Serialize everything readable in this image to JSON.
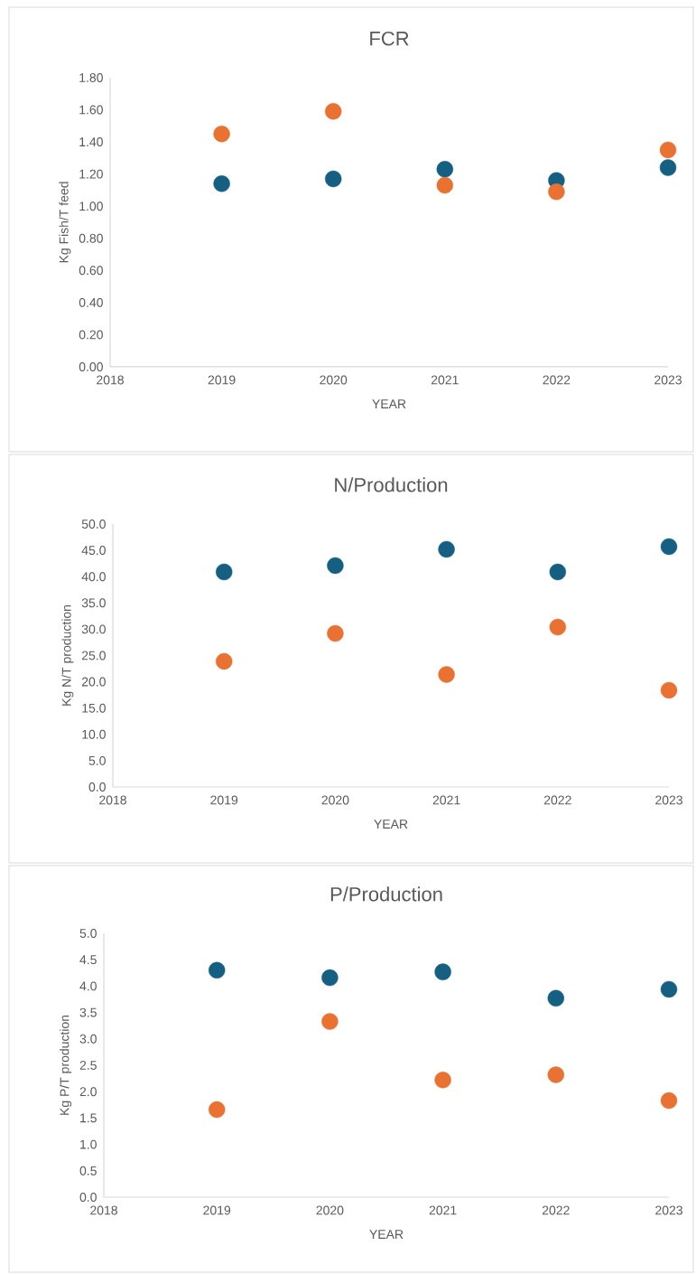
{
  "chart_data": [
    {
      "type": "scatter",
      "title": "FCR",
      "xlabel": "YEAR",
      "ylabel": "Kg Fish/T feed",
      "marker": "circle",
      "x": [
        2019,
        2020,
        2021,
        2022,
        2023
      ],
      "series": [
        {
          "color": "#156082",
          "values": [
            1.14,
            1.17,
            1.23,
            1.16,
            1.24
          ]
        },
        {
          "color": "#e97132",
          "values": [
            1.45,
            1.59,
            1.13,
            1.09,
            1.35
          ]
        }
      ],
      "xlim": [
        2018,
        2023
      ],
      "xticks": [
        2018,
        2019,
        2020,
        2021,
        2022,
        2023
      ],
      "ylim": [
        0,
        1.8
      ],
      "yticks": [
        {
          "value": 0,
          "label": "0.00"
        },
        {
          "value": 0.2,
          "label": "0.20"
        },
        {
          "value": 0.4,
          "label": "0.40"
        },
        {
          "value": 0.6,
          "label": "0.60"
        },
        {
          "value": 0.8,
          "label": "0.80"
        },
        {
          "value": 1.0,
          "label": "1.00"
        },
        {
          "value": 1.2,
          "label": "1.20"
        },
        {
          "value": 1.4,
          "label": "1.40"
        },
        {
          "value": 1.6,
          "label": "1.60"
        },
        {
          "value": 1.8,
          "label": "1.80"
        }
      ]
    },
    {
      "type": "scatter",
      "title": "N/Production",
      "xlabel": "YEAR",
      "ylabel": "Kg N/T production",
      "marker": "circle",
      "x": [
        2019,
        2020,
        2021,
        2022,
        2023
      ],
      "series": [
        {
          "color": "#156082",
          "values": [
            40.9,
            42.1,
            45.2,
            40.9,
            45.7
          ]
        },
        {
          "color": "#e97132",
          "values": [
            23.9,
            29.2,
            21.4,
            30.4,
            18.4
          ]
        }
      ],
      "xlim": [
        2018,
        2023
      ],
      "xticks": [
        2018,
        2019,
        2020,
        2021,
        2022,
        2023
      ],
      "ylim": [
        0,
        50
      ],
      "yticks": [
        {
          "value": 0,
          "label": "0.0"
        },
        {
          "value": 5,
          "label": "5.0"
        },
        {
          "value": 10,
          "label": "10.0"
        },
        {
          "value": 15,
          "label": "15.0"
        },
        {
          "value": 20,
          "label": "20.0"
        },
        {
          "value": 25,
          "label": "25.0"
        },
        {
          "value": 30,
          "label": "30.0"
        },
        {
          "value": 35,
          "label": "35.0"
        },
        {
          "value": 40,
          "label": "40.0"
        },
        {
          "value": 45,
          "label": "45.0"
        },
        {
          "value": 50,
          "label": "50.0"
        }
      ]
    },
    {
      "type": "scatter",
      "title": "P/Production",
      "xlabel": "YEAR",
      "ylabel": "Kg P/T production",
      "marker": "circle",
      "x": [
        2019,
        2020,
        2021,
        2022,
        2023
      ],
      "series": [
        {
          "color": "#156082",
          "values": [
            4.3,
            4.16,
            4.27,
            3.77,
            3.94
          ]
        },
        {
          "color": "#e97132",
          "values": [
            1.66,
            3.33,
            2.22,
            2.32,
            1.83
          ]
        }
      ],
      "xlim": [
        2018,
        2023
      ],
      "xticks": [
        2018,
        2019,
        2020,
        2021,
        2022,
        2023
      ],
      "ylim": [
        0,
        5
      ],
      "yticks": [
        {
          "value": 0,
          "label": "0.0"
        },
        {
          "value": 0.5,
          "label": "0.5"
        },
        {
          "value": 1,
          "label": "1.0"
        },
        {
          "value": 1.5,
          "label": "1.5"
        },
        {
          "value": 2,
          "label": "2.0"
        },
        {
          "value": 2.5,
          "label": "2.5"
        },
        {
          "value": 3,
          "label": "3.0"
        },
        {
          "value": 3.5,
          "label": "3.5"
        },
        {
          "value": 4,
          "label": "4.0"
        },
        {
          "value": 4.5,
          "label": "4.5"
        },
        {
          "value": 5,
          "label": "5.0"
        }
      ]
    }
  ]
}
